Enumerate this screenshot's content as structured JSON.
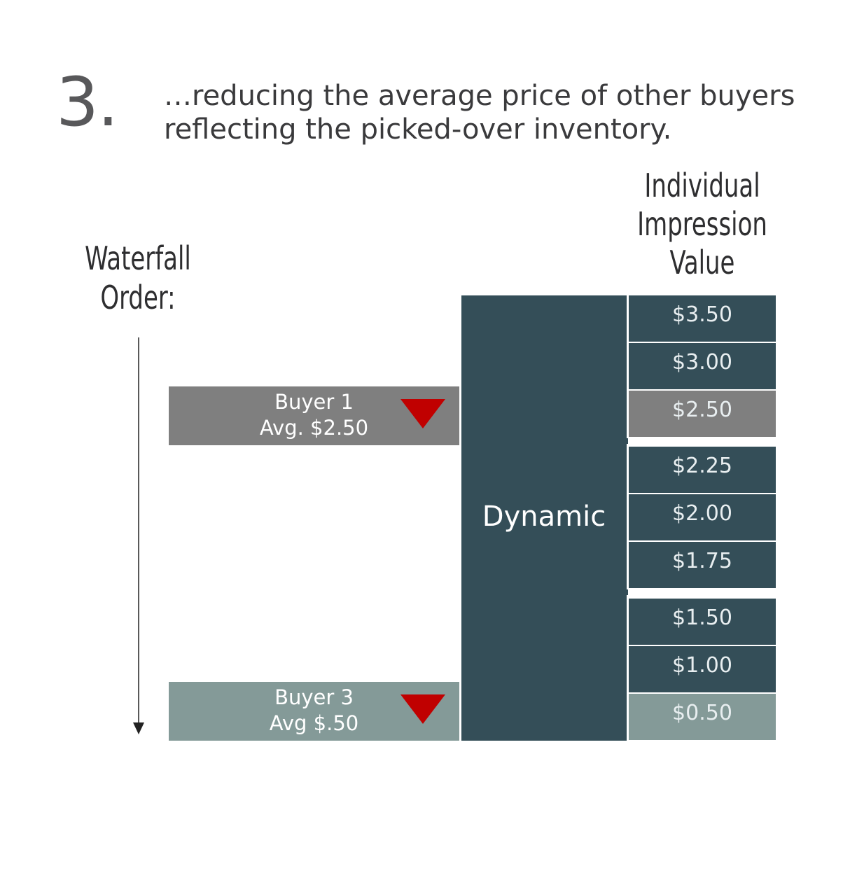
{
  "step_number": "3.",
  "headline": {
    "line1": "…reducing the average price of other buyers",
    "line2": "reflecting the picked-over inventory."
  },
  "value_header": [
    "Individual",
    "Impression",
    "Value"
  ],
  "waterfall_label": [
    "Waterfall",
    "Order:"
  ],
  "buyers": [
    {
      "name": "Buyer 1",
      "avg": "Avg. $2.50",
      "color": "#7f7f7f",
      "trend": "down"
    },
    {
      "name": "Buyer 3",
      "avg": "Avg $.50",
      "color": "#849a98",
      "trend": "down"
    }
  ],
  "dynamic_label": "Dynamic",
  "impression_values": [
    {
      "value": "$3.50",
      "color": "#344e58"
    },
    {
      "value": "$3.00",
      "color": "#344e58"
    },
    {
      "value": "$2.50",
      "color": "#7f7f7f"
    },
    {
      "value": "$2.25",
      "color": "#344e58"
    },
    {
      "value": "$2.00",
      "color": "#344e58"
    },
    {
      "value": "$1.75",
      "color": "#344e58"
    },
    {
      "value": "$1.50",
      "color": "#344e58"
    },
    {
      "value": "$1.00",
      "color": "#344e58"
    },
    {
      "value": "$0.50",
      "color": "#849a98"
    }
  ],
  "colors": {
    "dark_teal": "#344e58",
    "gray": "#7f7f7f",
    "sage": "#849a98",
    "down_arrow_red": "#c00000"
  }
}
